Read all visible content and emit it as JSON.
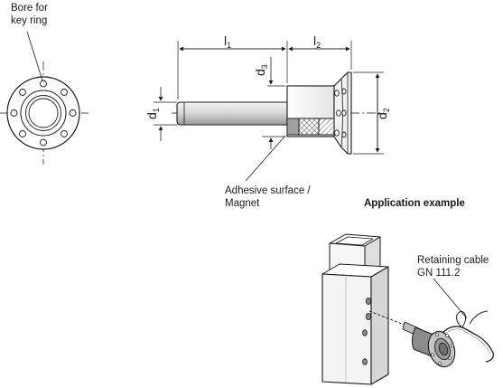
{
  "labels": {
    "bore_line1": "Bore for",
    "bore_line2": "key ring",
    "adhesive_line1": "Adhesive surface /",
    "adhesive_line2": "Magnet",
    "application": "Application example",
    "cable_line1": "Retaining cable",
    "cable_line2": "GN 111.2"
  },
  "dimensions": {
    "l1": "l",
    "l1_sub": "1",
    "l2": "l",
    "l2_sub": "2",
    "d1": "d",
    "d1_sub": "1",
    "d2": "d",
    "d2_sub": "2",
    "d3": "d",
    "d3_sub": "3"
  },
  "colors": {
    "line": "#1a1a1a",
    "fill_light": "#e8e8e8",
    "fill_mid": "#c8c8c8",
    "fill_dark": "#8a8a8a",
    "magnet": "#9a9a9a"
  }
}
